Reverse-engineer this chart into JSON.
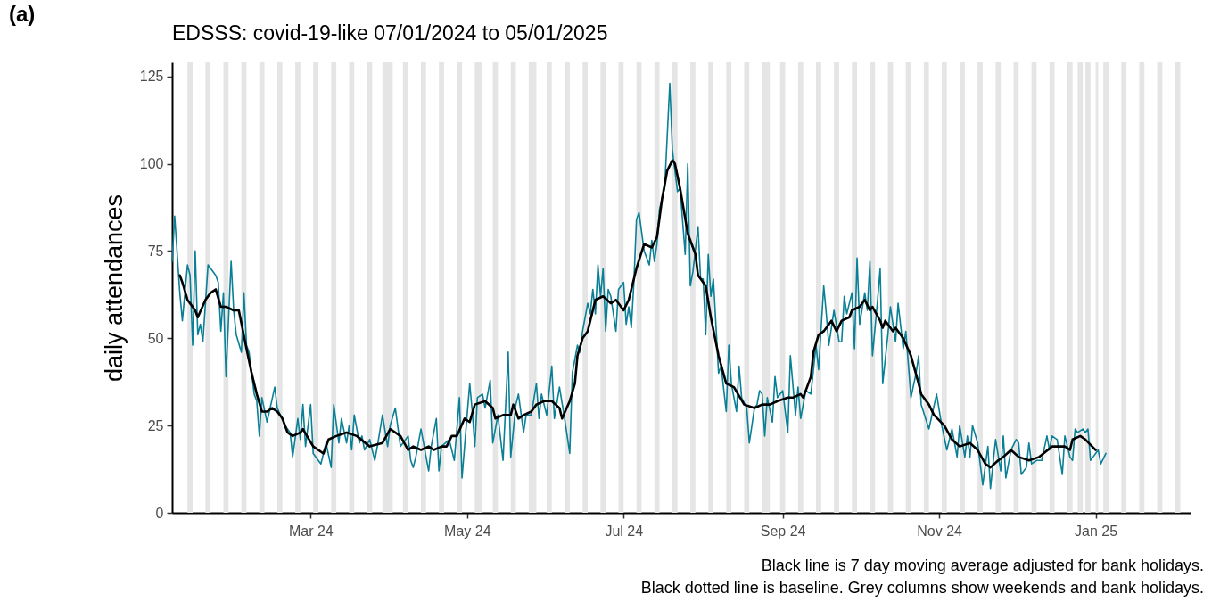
{
  "chart_data": {
    "type": "line",
    "title": "EDSSS: covid-19-like 07/01/2024 to 05/01/2025",
    "ylabel": "daily attendances",
    "xlim": [
      "2024-01-07",
      "2025-02-07"
    ],
    "xticks": [
      {
        "value": "2024-03-01",
        "label": "Mar 24"
      },
      {
        "value": "2024-05-01",
        "label": "May 24"
      },
      {
        "value": "2024-07-01",
        "label": "Jul 24"
      },
      {
        "value": "2024-09-01",
        "label": "Sep 24"
      },
      {
        "value": "2024-11-01",
        "label": "Nov 24"
      },
      {
        "value": "2025-01-01",
        "label": "Jan 25"
      }
    ],
    "ylim": [
      0,
      129
    ],
    "yticks": [
      0,
      25,
      50,
      75,
      100,
      125
    ],
    "series": [
      {
        "color": "#0a7f95",
        "x": [
          "2024-01-07",
          "2024-01-08",
          "2024-01-10",
          "2024-01-11",
          "2024-01-13",
          "2024-01-14",
          "2024-01-15",
          "2024-01-16",
          "2024-01-17",
          "2024-01-18",
          "2024-01-19",
          "2024-01-21",
          "2024-01-24",
          "2024-01-25",
          "2024-01-26",
          "2024-01-27",
          "2024-01-28",
          "2024-01-30",
          "2024-01-31",
          "2024-02-01",
          "2024-02-03",
          "2024-02-04",
          "2024-02-05",
          "2024-02-06",
          "2024-02-08",
          "2024-02-09",
          "2024-02-10",
          "2024-02-11",
          "2024-02-13",
          "2024-02-16",
          "2024-02-17",
          "2024-02-20",
          "2024-02-22",
          "2024-02-23",
          "2024-02-25",
          "2024-02-26",
          "2024-02-27",
          "2024-02-28",
          "2024-03-01",
          "2024-03-02",
          "2024-03-05",
          "2024-03-07",
          "2024-03-09",
          "2024-03-10",
          "2024-03-12",
          "2024-03-13",
          "2024-03-15",
          "2024-03-16",
          "2024-03-17",
          "2024-03-18",
          "2024-03-20",
          "2024-03-21",
          "2024-03-22",
          "2024-03-24",
          "2024-03-26",
          "2024-03-27",
          "2024-03-29",
          "2024-03-31",
          "2024-04-01",
          "2024-04-03",
          "2024-04-05",
          "2024-04-06",
          "2024-04-08",
          "2024-04-09",
          "2024-04-10",
          "2024-04-11",
          "2024-04-13",
          "2024-04-14",
          "2024-04-16",
          "2024-04-17",
          "2024-04-19",
          "2024-04-20",
          "2024-04-21",
          "2024-04-24",
          "2024-04-26",
          "2024-04-28",
          "2024-04-29",
          "2024-05-01",
          "2024-05-02",
          "2024-05-03",
          "2024-05-04",
          "2024-05-05",
          "2024-05-07",
          "2024-05-08",
          "2024-05-10",
          "2024-05-11",
          "2024-05-13",
          "2024-05-15",
          "2024-05-17",
          "2024-05-18",
          "2024-05-20",
          "2024-05-21",
          "2024-05-23",
          "2024-05-24",
          "2024-05-26",
          "2024-05-28",
          "2024-05-29",
          "2024-05-30",
          "2024-06-01",
          "2024-06-03",
          "2024-06-04",
          "2024-06-06",
          "2024-06-08",
          "2024-06-10",
          "2024-06-11",
          "2024-06-13",
          "2024-06-14",
          "2024-06-15",
          "2024-06-17",
          "2024-06-18",
          "2024-06-19",
          "2024-06-20",
          "2024-06-21",
          "2024-06-22",
          "2024-06-23",
          "2024-06-24",
          "2024-06-25",
          "2024-06-26",
          "2024-06-28",
          "2024-06-29",
          "2024-07-01",
          "2024-07-02",
          "2024-07-03",
          "2024-07-04",
          "2024-07-05",
          "2024-07-06",
          "2024-07-07",
          "2024-07-09",
          "2024-07-11",
          "2024-07-12",
          "2024-07-13",
          "2024-07-14",
          "2024-07-15",
          "2024-07-17",
          "2024-07-19",
          "2024-07-20",
          "2024-07-22",
          "2024-07-23",
          "2024-07-25",
          "2024-07-26",
          "2024-07-27",
          "2024-07-28",
          "2024-07-30",
          "2024-07-31",
          "2024-08-01",
          "2024-08-02",
          "2024-08-03",
          "2024-08-04",
          "2024-08-05",
          "2024-08-07",
          "2024-08-08",
          "2024-08-10",
          "2024-08-11",
          "2024-08-12",
          "2024-08-14",
          "2024-08-15",
          "2024-08-16",
          "2024-08-18",
          "2024-08-19",
          "2024-08-21",
          "2024-08-22",
          "2024-08-23",
          "2024-08-24",
          "2024-08-25",
          "2024-08-26",
          "2024-08-28",
          "2024-08-29",
          "2024-08-30",
          "2024-09-01",
          "2024-09-03",
          "2024-09-04",
          "2024-09-06",
          "2024-09-07",
          "2024-09-08",
          "2024-09-10",
          "2024-09-12",
          "2024-09-14",
          "2024-09-15",
          "2024-09-17",
          "2024-09-18",
          "2024-09-19",
          "2024-09-21",
          "2024-09-23",
          "2024-09-24",
          "2024-09-25",
          "2024-09-26",
          "2024-09-28",
          "2024-09-29",
          "2024-09-30",
          "2024-10-01",
          "2024-10-03",
          "2024-10-04",
          "2024-10-05",
          "2024-10-06",
          "2024-10-08",
          "2024-10-09",
          "2024-10-10",
          "2024-10-12",
          "2024-10-13",
          "2024-10-15",
          "2024-10-16",
          "2024-10-18",
          "2024-10-19",
          "2024-10-21",
          "2024-10-23",
          "2024-10-24",
          "2024-10-25",
          "2024-10-28",
          "2024-10-31",
          "2024-11-02",
          "2024-11-04",
          "2024-11-06",
          "2024-11-08",
          "2024-11-09",
          "2024-11-11",
          "2024-11-12",
          "2024-11-13",
          "2024-11-14",
          "2024-11-16",
          "2024-11-18",
          "2024-11-20",
          "2024-11-21",
          "2024-11-23",
          "2024-11-25",
          "2024-11-26",
          "2024-11-27",
          "2024-11-29",
          "2024-12-01",
          "2024-12-02",
          "2024-12-03",
          "2024-12-05",
          "2024-12-06",
          "2024-12-07",
          "2024-12-09",
          "2024-12-11",
          "2024-12-13",
          "2024-12-14",
          "2024-12-15",
          "2024-12-17",
          "2024-12-19",
          "2024-12-20",
          "2024-12-22",
          "2024-12-23",
          "2024-12-24",
          "2024-12-25",
          "2024-12-27",
          "2024-12-28",
          "2024-12-29",
          "2024-12-30",
          "2024-12-31",
          "2025-01-02",
          "2025-01-03",
          "2025-01-05"
        ],
        "values": [
          72,
          85,
          63,
          55,
          71,
          68,
          48,
          75,
          51,
          54,
          49,
          71,
          68,
          66,
          52,
          63,
          39,
          72,
          58,
          51,
          46,
          63,
          48,
          46,
          34,
          32,
          22,
          33,
          26,
          36,
          30,
          25,
          23,
          16,
          27,
          21,
          31,
          19,
          31,
          17,
          14,
          20,
          13,
          31,
          20,
          27,
          20,
          25,
          18,
          28,
          20,
          22,
          18,
          21,
          15,
          19,
          28,
          19,
          25,
          30,
          19,
          20,
          22,
          15,
          13,
          16,
          24,
          20,
          12,
          19,
          27,
          12,
          19,
          21,
          15,
          33,
          10,
          28,
          37,
          29,
          19,
          33,
          34,
          30,
          38,
          20,
          28,
          15,
          46,
          16,
          31,
          34,
          23,
          28,
          28,
          37,
          27,
          34,
          28,
          42,
          27,
          36,
          27,
          17,
          40,
          48,
          46,
          52,
          60,
          57,
          64,
          57,
          71,
          62,
          70,
          52,
          64,
          62,
          52,
          64,
          66,
          54,
          59,
          53,
          66,
          84,
          86,
          75,
          71,
          78,
          72,
          77,
          87,
          93,
          123,
          104,
          92,
          93,
          74,
          100,
          65,
          69,
          82,
          67,
          67,
          51,
          74,
          62,
          67,
          40,
          42,
          29,
          48,
          37,
          29,
          42,
          33,
          30,
          20,
          30,
          31,
          35,
          34,
          22,
          33,
          26,
          39,
          33,
          35,
          23,
          45,
          28,
          36,
          27,
          35,
          34,
          48,
          41,
          65,
          57,
          48,
          58,
          49,
          49,
          62,
          57,
          63,
          47,
          73,
          54,
          63,
          58,
          72,
          45,
          61,
          70,
          37,
          51,
          59,
          49,
          60,
          47,
          52,
          33,
          40,
          45,
          31,
          24,
          34,
          25,
          18,
          24,
          16,
          25,
          16,
          22,
          16,
          25,
          20,
          8,
          19,
          7,
          21,
          12,
          22,
          10,
          18,
          21,
          20,
          11,
          13,
          20,
          14,
          15,
          15,
          22,
          18,
          22,
          21,
          11,
          22,
          16,
          15,
          24,
          23,
          24,
          23,
          24,
          15,
          16,
          18,
          14,
          17
        ]
      },
      {
        "color": "#000000",
        "x": [
          "2024-01-10",
          "2024-01-11",
          "2024-01-13",
          "2024-01-14",
          "2024-01-16",
          "2024-01-17",
          "2024-01-20",
          "2024-01-22",
          "2024-01-24",
          "2024-01-26",
          "2024-01-28",
          "2024-01-31",
          "2024-02-02",
          "2024-02-05",
          "2024-02-07",
          "2024-02-09",
          "2024-02-11",
          "2024-02-13",
          "2024-02-15",
          "2024-02-17",
          "2024-02-19",
          "2024-02-21",
          "2024-02-23",
          "2024-02-26",
          "2024-02-27",
          "2024-03-02",
          "2024-03-06",
          "2024-03-08",
          "2024-03-11",
          "2024-03-15",
          "2024-03-19",
          "2024-03-24",
          "2024-03-29",
          "2024-04-01",
          "2024-04-05",
          "2024-04-08",
          "2024-04-10",
          "2024-04-13",
          "2024-04-16",
          "2024-04-18",
          "2024-04-21",
          "2024-04-23",
          "2024-04-25",
          "2024-04-27",
          "2024-04-30",
          "2024-05-02",
          "2024-05-04",
          "2024-05-08",
          "2024-05-11",
          "2024-05-12",
          "2024-05-15",
          "2024-05-18",
          "2024-05-19",
          "2024-05-21",
          "2024-05-23",
          "2024-05-26",
          "2024-05-28",
          "2024-05-31",
          "2024-06-03",
          "2024-06-06",
          "2024-06-07",
          "2024-06-10",
          "2024-06-12",
          "2024-06-13",
          "2024-06-15",
          "2024-06-17",
          "2024-06-20",
          "2024-06-23",
          "2024-06-26",
          "2024-06-28",
          "2024-07-01",
          "2024-07-03",
          "2024-07-06",
          "2024-07-09",
          "2024-07-12",
          "2024-07-14",
          "2024-07-16",
          "2024-07-18",
          "2024-07-20",
          "2024-07-21",
          "2024-07-23",
          "2024-07-26",
          "2024-07-29",
          "2024-07-30",
          "2024-08-02",
          "2024-08-04",
          "2024-08-07",
          "2024-08-10",
          "2024-08-13",
          "2024-08-17",
          "2024-08-21",
          "2024-08-24",
          "2024-08-27",
          "2024-08-30",
          "2024-09-03",
          "2024-09-05",
          "2024-09-08",
          "2024-09-09",
          "2024-09-12",
          "2024-09-13",
          "2024-09-15",
          "2024-09-17",
          "2024-09-20",
          "2024-09-22",
          "2024-09-24",
          "2024-09-27",
          "2024-09-28",
          "2024-10-01",
          "2024-10-03",
          "2024-10-05",
          "2024-10-06",
          "2024-10-09",
          "2024-10-10",
          "2024-10-11",
          "2024-10-14",
          "2024-10-15",
          "2024-10-18",
          "2024-10-21",
          "2024-10-24",
          "2024-10-25",
          "2024-10-28",
          "2024-10-30",
          "2024-11-03",
          "2024-11-06",
          "2024-11-09",
          "2024-11-13",
          "2024-11-16",
          "2024-11-19",
          "2024-11-21",
          "2024-11-24",
          "2024-11-26",
          "2024-11-29",
          "2024-12-02",
          "2024-12-06",
          "2024-12-10",
          "2024-12-15",
          "2024-12-17",
          "2024-12-20",
          "2024-12-22",
          "2024-12-23",
          "2024-12-26",
          "2024-12-28",
          "2025-01-01"
        ],
        "values": [
          68,
          66,
          61,
          60,
          58,
          56,
          61,
          63,
          64,
          59,
          59,
          58,
          58,
          47,
          40,
          34,
          29,
          29,
          30,
          29,
          27,
          23,
          22,
          23,
          24,
          19,
          17,
          21,
          22,
          23,
          22,
          19,
          20,
          24,
          22,
          18,
          19,
          18,
          19,
          18,
          19,
          19,
          22,
          22,
          27,
          26,
          31,
          32,
          30,
          27,
          28,
          28,
          31,
          27,
          28,
          29,
          31,
          32,
          32,
          30,
          27,
          32,
          37,
          45,
          50,
          52,
          61,
          62,
          60,
          61,
          58,
          61,
          70,
          77,
          76,
          79,
          90,
          98,
          101,
          100,
          93,
          80,
          74,
          68,
          65,
          56,
          45,
          37,
          36,
          31,
          30,
          31,
          31,
          32,
          33,
          33,
          34,
          33,
          39,
          46,
          51,
          52,
          55,
          52,
          55,
          56,
          58,
          59,
          61,
          58,
          59,
          55,
          53,
          55,
          52,
          53,
          50,
          45,
          37,
          34,
          31,
          28,
          25,
          21,
          19,
          20,
          18,
          14,
          13,
          15,
          16,
          18,
          16,
          15,
          16,
          19,
          19,
          19,
          18,
          21,
          22,
          21,
          18
        ]
      }
    ],
    "bands": [
      {
        "axis": "x",
        "from": "2024-01-13",
        "to": "2024-01-15",
        "color": "#e5e5e5"
      },
      {
        "axis": "x",
        "from": "2024-01-20",
        "to": "2024-01-22",
        "color": "#e5e5e5"
      },
      {
        "axis": "x",
        "from": "2024-01-27",
        "to": "2024-01-29",
        "color": "#e5e5e5"
      },
      {
        "axis": "x",
        "from": "2024-02-03",
        "to": "2024-02-05",
        "color": "#e5e5e5"
      },
      {
        "axis": "x",
        "from": "2024-02-10",
        "to": "2024-02-12",
        "color": "#e5e5e5"
      },
      {
        "axis": "x",
        "from": "2024-02-17",
        "to": "2024-02-19",
        "color": "#e5e5e5"
      },
      {
        "axis": "x",
        "from": "2024-02-24",
        "to": "2024-02-26",
        "color": "#e5e5e5"
      },
      {
        "axis": "x",
        "from": "2024-03-02",
        "to": "2024-03-04",
        "color": "#e5e5e5"
      },
      {
        "axis": "x",
        "from": "2024-03-09",
        "to": "2024-03-11",
        "color": "#e5e5e5"
      },
      {
        "axis": "x",
        "from": "2024-03-16",
        "to": "2024-03-18",
        "color": "#e5e5e5"
      },
      {
        "axis": "x",
        "from": "2024-03-23",
        "to": "2024-03-25",
        "color": "#e5e5e5"
      },
      {
        "axis": "x",
        "from": "2024-03-29",
        "to": "2024-04-02",
        "color": "#e5e5e5"
      },
      {
        "axis": "x",
        "from": "2024-04-06",
        "to": "2024-04-08",
        "color": "#e5e5e5"
      },
      {
        "axis": "x",
        "from": "2024-04-13",
        "to": "2024-04-15",
        "color": "#e5e5e5"
      },
      {
        "axis": "x",
        "from": "2024-04-20",
        "to": "2024-04-22",
        "color": "#e5e5e5"
      },
      {
        "axis": "x",
        "from": "2024-04-27",
        "to": "2024-04-29",
        "color": "#e5e5e5"
      },
      {
        "axis": "x",
        "from": "2024-05-04",
        "to": "2024-05-07",
        "color": "#e5e5e5"
      },
      {
        "axis": "x",
        "from": "2024-05-11",
        "to": "2024-05-13",
        "color": "#e5e5e5"
      },
      {
        "axis": "x",
        "from": "2024-05-18",
        "to": "2024-05-20",
        "color": "#e5e5e5"
      },
      {
        "axis": "x",
        "from": "2024-05-25",
        "to": "2024-05-28",
        "color": "#e5e5e5"
      },
      {
        "axis": "x",
        "from": "2024-06-01",
        "to": "2024-06-03",
        "color": "#e5e5e5"
      },
      {
        "axis": "x",
        "from": "2024-06-08",
        "to": "2024-06-10",
        "color": "#e5e5e5"
      },
      {
        "axis": "x",
        "from": "2024-06-15",
        "to": "2024-06-17",
        "color": "#e5e5e5"
      },
      {
        "axis": "x",
        "from": "2024-06-22",
        "to": "2024-06-24",
        "color": "#e5e5e5"
      },
      {
        "axis": "x",
        "from": "2024-06-29",
        "to": "2024-07-01",
        "color": "#e5e5e5"
      },
      {
        "axis": "x",
        "from": "2024-07-06",
        "to": "2024-07-08",
        "color": "#e5e5e5"
      },
      {
        "axis": "x",
        "from": "2024-07-13",
        "to": "2024-07-15",
        "color": "#e5e5e5"
      },
      {
        "axis": "x",
        "from": "2024-07-20",
        "to": "2024-07-22",
        "color": "#e5e5e5"
      },
      {
        "axis": "x",
        "from": "2024-07-27",
        "to": "2024-07-29",
        "color": "#e5e5e5"
      },
      {
        "axis": "x",
        "from": "2024-08-03",
        "to": "2024-08-05",
        "color": "#e5e5e5"
      },
      {
        "axis": "x",
        "from": "2024-08-10",
        "to": "2024-08-12",
        "color": "#e5e5e5"
      },
      {
        "axis": "x",
        "from": "2024-08-17",
        "to": "2024-08-19",
        "color": "#e5e5e5"
      },
      {
        "axis": "x",
        "from": "2024-08-24",
        "to": "2024-08-27",
        "color": "#e5e5e5"
      },
      {
        "axis": "x",
        "from": "2024-08-31",
        "to": "2024-09-02",
        "color": "#e5e5e5"
      },
      {
        "axis": "x",
        "from": "2024-09-07",
        "to": "2024-09-09",
        "color": "#e5e5e5"
      },
      {
        "axis": "x",
        "from": "2024-09-14",
        "to": "2024-09-16",
        "color": "#e5e5e5"
      },
      {
        "axis": "x",
        "from": "2024-09-21",
        "to": "2024-09-23",
        "color": "#e5e5e5"
      },
      {
        "axis": "x",
        "from": "2024-09-28",
        "to": "2024-09-30",
        "color": "#e5e5e5"
      },
      {
        "axis": "x",
        "from": "2024-10-05",
        "to": "2024-10-07",
        "color": "#e5e5e5"
      },
      {
        "axis": "x",
        "from": "2024-10-12",
        "to": "2024-10-14",
        "color": "#e5e5e5"
      },
      {
        "axis": "x",
        "from": "2024-10-19",
        "to": "2024-10-21",
        "color": "#e5e5e5"
      },
      {
        "axis": "x",
        "from": "2024-10-26",
        "to": "2024-10-28",
        "color": "#e5e5e5"
      },
      {
        "axis": "x",
        "from": "2024-11-02",
        "to": "2024-11-04",
        "color": "#e5e5e5"
      },
      {
        "axis": "x",
        "from": "2024-11-09",
        "to": "2024-11-11",
        "color": "#e5e5e5"
      },
      {
        "axis": "x",
        "from": "2024-11-16",
        "to": "2024-11-18",
        "color": "#e5e5e5"
      },
      {
        "axis": "x",
        "from": "2024-11-23",
        "to": "2024-11-25",
        "color": "#e5e5e5"
      },
      {
        "axis": "x",
        "from": "2024-11-30",
        "to": "2024-12-02",
        "color": "#e5e5e5"
      },
      {
        "axis": "x",
        "from": "2024-12-07",
        "to": "2024-12-09",
        "color": "#e5e5e5"
      },
      {
        "axis": "x",
        "from": "2024-12-14",
        "to": "2024-12-16",
        "color": "#e5e5e5"
      },
      {
        "axis": "x",
        "from": "2024-12-21",
        "to": "2024-12-23",
        "color": "#e5e5e5"
      },
      {
        "axis": "x",
        "from": "2024-12-25",
        "to": "2024-12-27",
        "color": "#e5e5e5"
      },
      {
        "axis": "x",
        "from": "2024-12-28",
        "to": "2024-12-30",
        "color": "#e5e5e5"
      },
      {
        "axis": "x",
        "from": "2025-01-01",
        "to": "2025-01-02",
        "color": "#e5e5e5"
      },
      {
        "axis": "x",
        "from": "2025-01-04",
        "to": "2025-01-06",
        "color": "#e5e5e5"
      },
      {
        "axis": "x",
        "from": "2025-01-11",
        "to": "2025-01-13",
        "color": "#e5e5e5"
      },
      {
        "axis": "x",
        "from": "2025-01-18",
        "to": "2025-01-20",
        "color": "#e5e5e5"
      },
      {
        "axis": "x",
        "from": "2025-01-25",
        "to": "2025-01-27",
        "color": "#e5e5e5"
      },
      {
        "axis": "x",
        "from": "2025-02-01",
        "to": "2025-02-03",
        "color": "#e5e5e5"
      }
    ],
    "annotations": [
      "(a)",
      "Black line is 7 day moving average adjusted for bank holidays.",
      "Black dotted line is baseline. Grey columns show weekends and bank holidays."
    ]
  }
}
